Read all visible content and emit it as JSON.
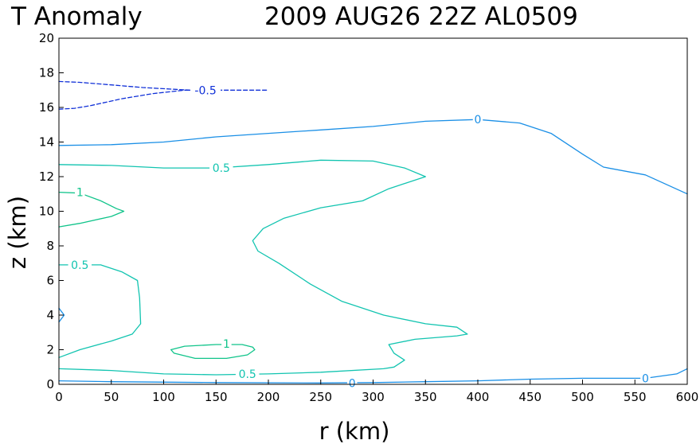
{
  "chart_data": {
    "type": "contour",
    "title": "T Anomaly",
    "subtitle": "2009 AUG26 22Z   AL0509",
    "xlabel": "r (km)",
    "ylabel": "z (km)",
    "xlim": [
      0,
      600
    ],
    "ylim": [
      0,
      20
    ],
    "xticks": [
      0,
      50,
      100,
      150,
      200,
      250,
      300,
      350,
      400,
      450,
      500,
      550,
      600
    ],
    "yticks": [
      0,
      2,
      4,
      6,
      8,
      10,
      12,
      14,
      16,
      18,
      20
    ],
    "colors": {
      "neg": "#1030d8",
      "zero": "#1a8fe6",
      "half": "#12c4b0",
      "one": "#10c48a"
    },
    "contours": [
      {
        "level": "-0.5",
        "color": "neg",
        "dashed": true,
        "points": [
          [
            0,
            17.5
          ],
          [
            20,
            17.45
          ],
          [
            50,
            17.3
          ],
          [
            80,
            17.15
          ],
          [
            110,
            17.05
          ],
          [
            125,
            17.0
          ],
          [
            145,
            17.0
          ],
          [
            200,
            17.0
          ]
        ],
        "labels": [
          {
            "text": "-0.5",
            "at": [
              140,
              17.0
            ]
          }
        ]
      },
      {
        "level": "-0.5",
        "color": "neg",
        "dashed": true,
        "points": [
          [
            0,
            15.9
          ],
          [
            15,
            15.95
          ],
          [
            30,
            16.1
          ],
          [
            60,
            16.5
          ],
          [
            90,
            16.8
          ],
          [
            120,
            17.0
          ],
          [
            125,
            17.0
          ]
        ],
        "labels": []
      },
      {
        "level": "0",
        "color": "zero",
        "dashed": false,
        "points": [
          [
            0,
            13.8
          ],
          [
            50,
            13.85
          ],
          [
            100,
            14.0
          ],
          [
            150,
            14.3
          ],
          [
            200,
            14.5
          ],
          [
            250,
            14.7
          ],
          [
            300,
            14.9
          ],
          [
            350,
            15.2
          ],
          [
            400,
            15.3
          ],
          [
            440,
            15.1
          ],
          [
            470,
            14.5
          ],
          [
            500,
            13.3
          ],
          [
            520,
            12.55
          ],
          [
            560,
            12.1
          ],
          [
            600,
            11.0
          ]
        ],
        "labels": [
          {
            "text": "0",
            "at": [
              400,
              15.3
            ]
          }
        ]
      },
      {
        "level": "0",
        "color": "zero",
        "dashed": false,
        "points": [
          [
            0,
            0.2
          ],
          [
            50,
            0.15
          ],
          [
            150,
            0.1
          ],
          [
            250,
            0.08
          ],
          [
            300,
            0.1
          ],
          [
            350,
            0.15
          ],
          [
            400,
            0.2
          ],
          [
            450,
            0.3
          ],
          [
            500,
            0.35
          ],
          [
            560,
            0.35
          ],
          [
            590,
            0.6
          ],
          [
            600,
            0.9
          ]
        ],
        "labels": [
          {
            "text": "0",
            "at": [
              280,
              0.08
            ]
          },
          {
            "text": "0",
            "at": [
              560,
              0.35
            ]
          }
        ]
      },
      {
        "level": "0",
        "color": "zero",
        "dashed": false,
        "points": [
          [
            0,
            4.4
          ],
          [
            5,
            4.0
          ],
          [
            0,
            3.6
          ]
        ],
        "labels": []
      },
      {
        "level": "0.5",
        "color": "half",
        "dashed": false,
        "points": [
          [
            0,
            12.7
          ],
          [
            50,
            12.65
          ],
          [
            100,
            12.5
          ],
          [
            150,
            12.5
          ],
          [
            200,
            12.7
          ],
          [
            250,
            12.95
          ],
          [
            300,
            12.9
          ],
          [
            330,
            12.5
          ],
          [
            350,
            12.0
          ],
          [
            315,
            11.3
          ],
          [
            290,
            10.6
          ],
          [
            250,
            10.2
          ],
          [
            215,
            9.6
          ],
          [
            195,
            9.0
          ],
          [
            185,
            8.3
          ],
          [
            190,
            7.7
          ],
          [
            210,
            7.0
          ],
          [
            240,
            5.8
          ],
          [
            270,
            4.8
          ],
          [
            310,
            4.0
          ],
          [
            350,
            3.5
          ],
          [
            380,
            3.3
          ],
          [
            390,
            2.9
          ],
          [
            380,
            2.8
          ],
          [
            340,
            2.6
          ],
          [
            315,
            2.3
          ],
          [
            320,
            1.8
          ],
          [
            330,
            1.4
          ],
          [
            320,
            1.0
          ],
          [
            310,
            0.9
          ],
          [
            250,
            0.7
          ],
          [
            200,
            0.6
          ],
          [
            150,
            0.55
          ],
          [
            100,
            0.6
          ],
          [
            50,
            0.8
          ],
          [
            0,
            0.9
          ]
        ],
        "labels": [
          {
            "text": "0.5",
            "at": [
              155,
              12.5
            ]
          },
          {
            "text": "0.5",
            "at": [
              180,
              0.6
            ]
          }
        ]
      },
      {
        "level": "0.5",
        "color": "half",
        "dashed": false,
        "points": [
          [
            0,
            6.9
          ],
          [
            40,
            6.9
          ],
          [
            60,
            6.5
          ],
          [
            75,
            6.0
          ],
          [
            77,
            5.0
          ],
          [
            78,
            3.5
          ],
          [
            70,
            2.9
          ],
          [
            50,
            2.5
          ],
          [
            20,
            2.0
          ],
          [
            0,
            1.55
          ]
        ],
        "labels": [
          {
            "text": "0.5",
            "at": [
              20,
              6.9
            ]
          }
        ]
      },
      {
        "level": "1",
        "color": "one",
        "dashed": false,
        "points": [
          [
            0,
            11.1
          ],
          [
            20,
            11.05
          ],
          [
            40,
            10.6
          ],
          [
            55,
            10.15
          ],
          [
            62,
            10.0
          ],
          [
            50,
            9.7
          ],
          [
            20,
            9.3
          ],
          [
            0,
            9.1
          ]
        ],
        "labels": [
          {
            "text": "1",
            "at": [
              20,
              11.1
            ]
          }
        ]
      },
      {
        "level": "1",
        "color": "one",
        "dashed": false,
        "points": [
          [
            107,
            2.0
          ],
          [
            120,
            2.2
          ],
          [
            150,
            2.3
          ],
          [
            175,
            2.3
          ],
          [
            185,
            2.15
          ],
          [
            187,
            2.0
          ],
          [
            180,
            1.7
          ],
          [
            160,
            1.5
          ],
          [
            130,
            1.5
          ],
          [
            110,
            1.8
          ],
          [
            107,
            2.0
          ]
        ],
        "labels": [
          {
            "text": "1",
            "at": [
              160,
              2.35
            ]
          }
        ]
      }
    ]
  }
}
